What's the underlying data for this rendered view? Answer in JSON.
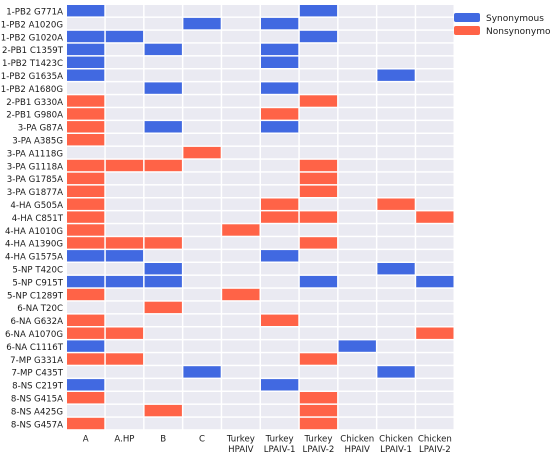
{
  "chart_data": {
    "type": "heatmap",
    "title": "",
    "xlabel": "",
    "ylabel": "",
    "colors": {
      "syn": "#4169e1",
      "non": "#ff6347",
      "empty": "#eaeaf2"
    },
    "legend": {
      "position": "top-right",
      "entries": [
        {
          "key": "syn",
          "label": "Synonymous"
        },
        {
          "key": "non",
          "label": "Nonsynonymous"
        }
      ]
    },
    "columns": [
      [
        "A"
      ],
      [
        "A.HP"
      ],
      [
        "B"
      ],
      [
        "C"
      ],
      [
        "Turkey",
        "HPAIV"
      ],
      [
        "Turkey",
        "LPAIV-1"
      ],
      [
        "Turkey",
        "LPAIV-2"
      ],
      [
        "Chicken",
        "HPAIV"
      ],
      [
        "Chicken",
        "LPAIV-1"
      ],
      [
        "Chicken",
        "LPAIV-2"
      ]
    ],
    "rows": [
      "1-PB2 G771A",
      "1-PB2 A1020G",
      "1-PB2 G1020A",
      "2-PB1 C1359T",
      "1-PB2 T1423C",
      "1-PB2 G1635A",
      "1-PB2 A1680G",
      "2-PB1 G330A",
      "2-PB1 G980A",
      "3-PA G87A",
      "3-PA A385G",
      "3-PA A1118G",
      "3-PA G1118A",
      "3-PA G1785A",
      "3-PA G1877A",
      "4-HA G505A",
      "4-HA C851T",
      "4-HA A1010G",
      "4-HA A1390G",
      "4-HA G1575A",
      "5-NP T420C",
      "5-NP C915T",
      "5-NP C1289T",
      "6-NA T20C",
      "6-NA G632A",
      "6-NA A1070G",
      "6-NA C1116T",
      "7-MP G331A",
      "7-MP C435T",
      "8-NS C219T",
      "8-NS G415A",
      "8-NS A425G",
      "8-NS G457A"
    ],
    "cells": [
      [
        "syn",
        "",
        "",
        "",
        "",
        "",
        "syn",
        "",
        "",
        ""
      ],
      [
        "",
        "",
        "",
        "syn",
        "",
        "syn",
        "",
        "",
        "",
        ""
      ],
      [
        "syn",
        "syn",
        "",
        "",
        "",
        "",
        "syn",
        "",
        "",
        ""
      ],
      [
        "syn",
        "",
        "syn",
        "",
        "",
        "syn",
        "",
        "",
        "",
        ""
      ],
      [
        "syn",
        "",
        "",
        "",
        "",
        "syn",
        "",
        "",
        "",
        ""
      ],
      [
        "syn",
        "",
        "",
        "",
        "",
        "",
        "",
        "",
        "syn",
        ""
      ],
      [
        "",
        "",
        "syn",
        "",
        "",
        "syn",
        "",
        "",
        "",
        ""
      ],
      [
        "non",
        "",
        "",
        "",
        "",
        "",
        "non",
        "",
        "",
        ""
      ],
      [
        "non",
        "",
        "",
        "",
        "",
        "non",
        "",
        "",
        "",
        ""
      ],
      [
        "non",
        "",
        "syn",
        "",
        "",
        "syn",
        "",
        "",
        "",
        ""
      ],
      [
        "non",
        "",
        "",
        "",
        "",
        "",
        "",
        "",
        "",
        ""
      ],
      [
        "",
        "",
        "",
        "non",
        "",
        "",
        "",
        "",
        "",
        ""
      ],
      [
        "non",
        "non",
        "non",
        "",
        "",
        "",
        "non",
        "",
        "",
        ""
      ],
      [
        "non",
        "",
        "",
        "",
        "",
        "",
        "non",
        "",
        "",
        ""
      ],
      [
        "non",
        "",
        "",
        "",
        "",
        "",
        "non",
        "",
        "",
        ""
      ],
      [
        "non",
        "",
        "",
        "",
        "",
        "non",
        "",
        "",
        "non",
        ""
      ],
      [
        "non",
        "",
        "",
        "",
        "",
        "non",
        "non",
        "",
        "",
        "non"
      ],
      [
        "non",
        "",
        "",
        "",
        "non",
        "",
        "",
        "",
        "",
        ""
      ],
      [
        "non",
        "non",
        "non",
        "",
        "",
        "",
        "non",
        "",
        "",
        ""
      ],
      [
        "syn",
        "syn",
        "",
        "",
        "",
        "syn",
        "",
        "",
        "",
        ""
      ],
      [
        "",
        "",
        "syn",
        "",
        "",
        "",
        "",
        "",
        "syn",
        ""
      ],
      [
        "syn",
        "syn",
        "syn",
        "",
        "",
        "",
        "syn",
        "",
        "",
        "syn"
      ],
      [
        "non",
        "",
        "",
        "",
        "non",
        "",
        "",
        "",
        "",
        ""
      ],
      [
        "",
        "",
        "non",
        "",
        "",
        "",
        "",
        "",
        "",
        ""
      ],
      [
        "non",
        "",
        "",
        "",
        "",
        "non",
        "",
        "",
        "",
        ""
      ],
      [
        "non",
        "non",
        "",
        "",
        "",
        "",
        "",
        "",
        "",
        "non"
      ],
      [
        "syn",
        "",
        "",
        "",
        "",
        "",
        "",
        "syn",
        "",
        ""
      ],
      [
        "non",
        "non",
        "",
        "",
        "",
        "",
        "non",
        "",
        "",
        ""
      ],
      [
        "",
        "",
        "",
        "syn",
        "",
        "",
        "",
        "",
        "syn",
        ""
      ],
      [
        "syn",
        "",
        "",
        "",
        "",
        "syn",
        "",
        "",
        "",
        ""
      ],
      [
        "non",
        "",
        "",
        "",
        "",
        "",
        "non",
        "",
        "",
        ""
      ],
      [
        "",
        "",
        "non",
        "",
        "",
        "",
        "non",
        "",
        "",
        ""
      ],
      [
        "non",
        "",
        "",
        "",
        "",
        "",
        "non",
        "",
        "",
        ""
      ]
    ]
  }
}
